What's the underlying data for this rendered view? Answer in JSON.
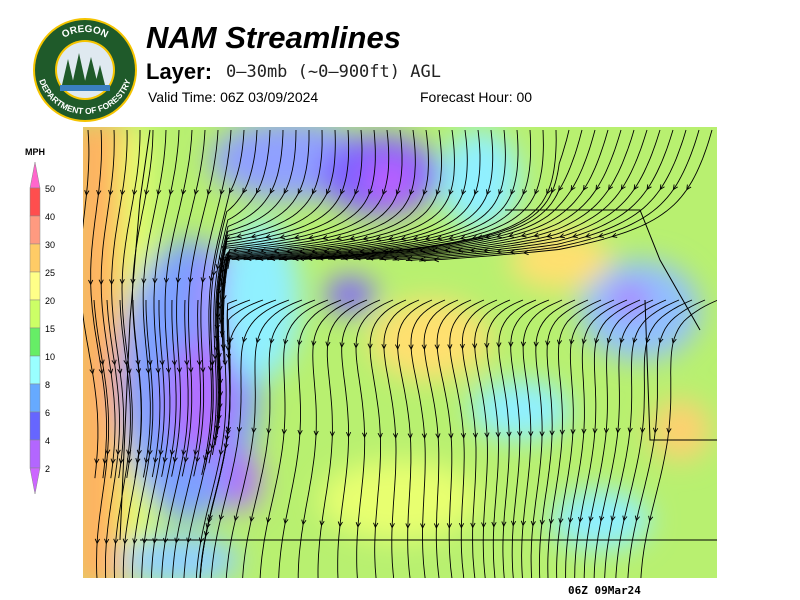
{
  "header": {
    "title": "NAM Streamlines",
    "layer_label": "Layer:",
    "layer_value": "0–30mb (~0–900ft) AGL",
    "valid_time": "Valid Time: 06Z 03/09/2024",
    "forecast_hour": "Forecast Hour: 00"
  },
  "logo": {
    "top": "OREGON",
    "bottom": "DEPARTMENT OF FORESTRY"
  },
  "legend": {
    "unit": "MPH",
    "levels": [
      50,
      40,
      30,
      25,
      20,
      15,
      10,
      8,
      6,
      4,
      2
    ]
  },
  "map": {
    "timestamp": "06Z 09Mar24"
  }
}
